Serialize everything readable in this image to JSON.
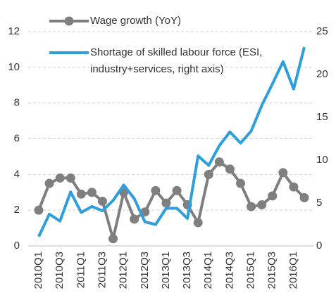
{
  "chart_data": {
    "type": "line",
    "categories": [
      "2010Q1",
      null,
      "2010Q3",
      null,
      "2011Q1",
      null,
      "2011Q3",
      null,
      "2012Q1",
      null,
      "2012Q3",
      null,
      "2013Q1",
      null,
      "2013Q3",
      null,
      "2014Q1",
      null,
      "2014Q3",
      null,
      "2015Q1",
      null,
      "2015Q3",
      null,
      "2016Q1",
      null
    ],
    "series": [
      {
        "name": "Wage growth (YoY)",
        "color": "#7f7f7f",
        "axis": "y",
        "values": [
          2.0,
          3.5,
          3.8,
          3.8,
          2.9,
          3.0,
          2.5,
          0.4,
          3.0,
          1.5,
          1.9,
          3.1,
          2.4,
          3.1,
          2.3,
          1.3,
          4.0,
          4.7,
          4.3,
          3.5,
          2.2,
          2.3,
          2.8,
          4.1,
          3.3,
          2.7
        ]
      },
      {
        "name": "Shortage of skilled labour force (ESI, industry+services, right axis)",
        "color": "#2e9fdc",
        "axis": "y2",
        "values": [
          1.1,
          3.7,
          2.9,
          6.3,
          3.9,
          4.6,
          4.1,
          5.3,
          7.1,
          5.5,
          2.8,
          2.5,
          4.4,
          4.4,
          3.2,
          10.5,
          9.4,
          11.7,
          13.3,
          12.0,
          13.4,
          16.4,
          18.9,
          21.5,
          18.3,
          23.2
        ]
      }
    ],
    "ylim": [
      0,
      12
    ],
    "yticks": [
      0,
      2,
      4,
      6,
      8,
      10,
      12
    ],
    "y2lim": [
      0,
      25
    ],
    "y2ticks": [
      0,
      5,
      10,
      15,
      20,
      25
    ],
    "grid": true
  }
}
